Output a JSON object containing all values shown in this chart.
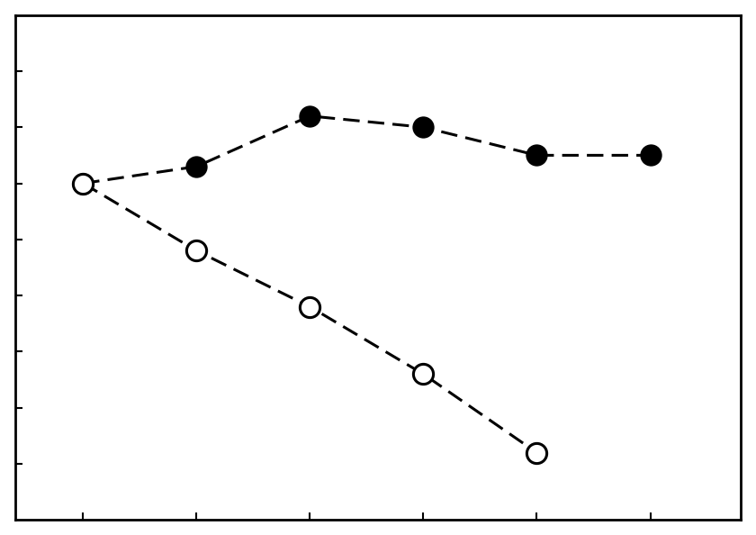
{
  "closed_x": [
    1,
    2,
    3,
    4,
    5,
    6
  ],
  "closed_y": [
    6,
    6.3,
    7.2,
    7.0,
    6.5,
    6.5
  ],
  "open_x": [
    1,
    2,
    3,
    4,
    5
  ],
  "open_y": [
    6,
    4.8,
    3.8,
    2.6,
    1.2
  ],
  "xlim": [
    0.4,
    6.8
  ],
  "ylim": [
    0.0,
    9.0
  ],
  "xticks": [
    1,
    2,
    3,
    4,
    5,
    6
  ],
  "yticks": [
    1,
    2,
    3,
    4,
    5,
    6,
    7,
    8
  ],
  "line_color": "#000000",
  "marker_size": 16,
  "line_width": 2.2,
  "dash_pattern": [
    6,
    3
  ]
}
